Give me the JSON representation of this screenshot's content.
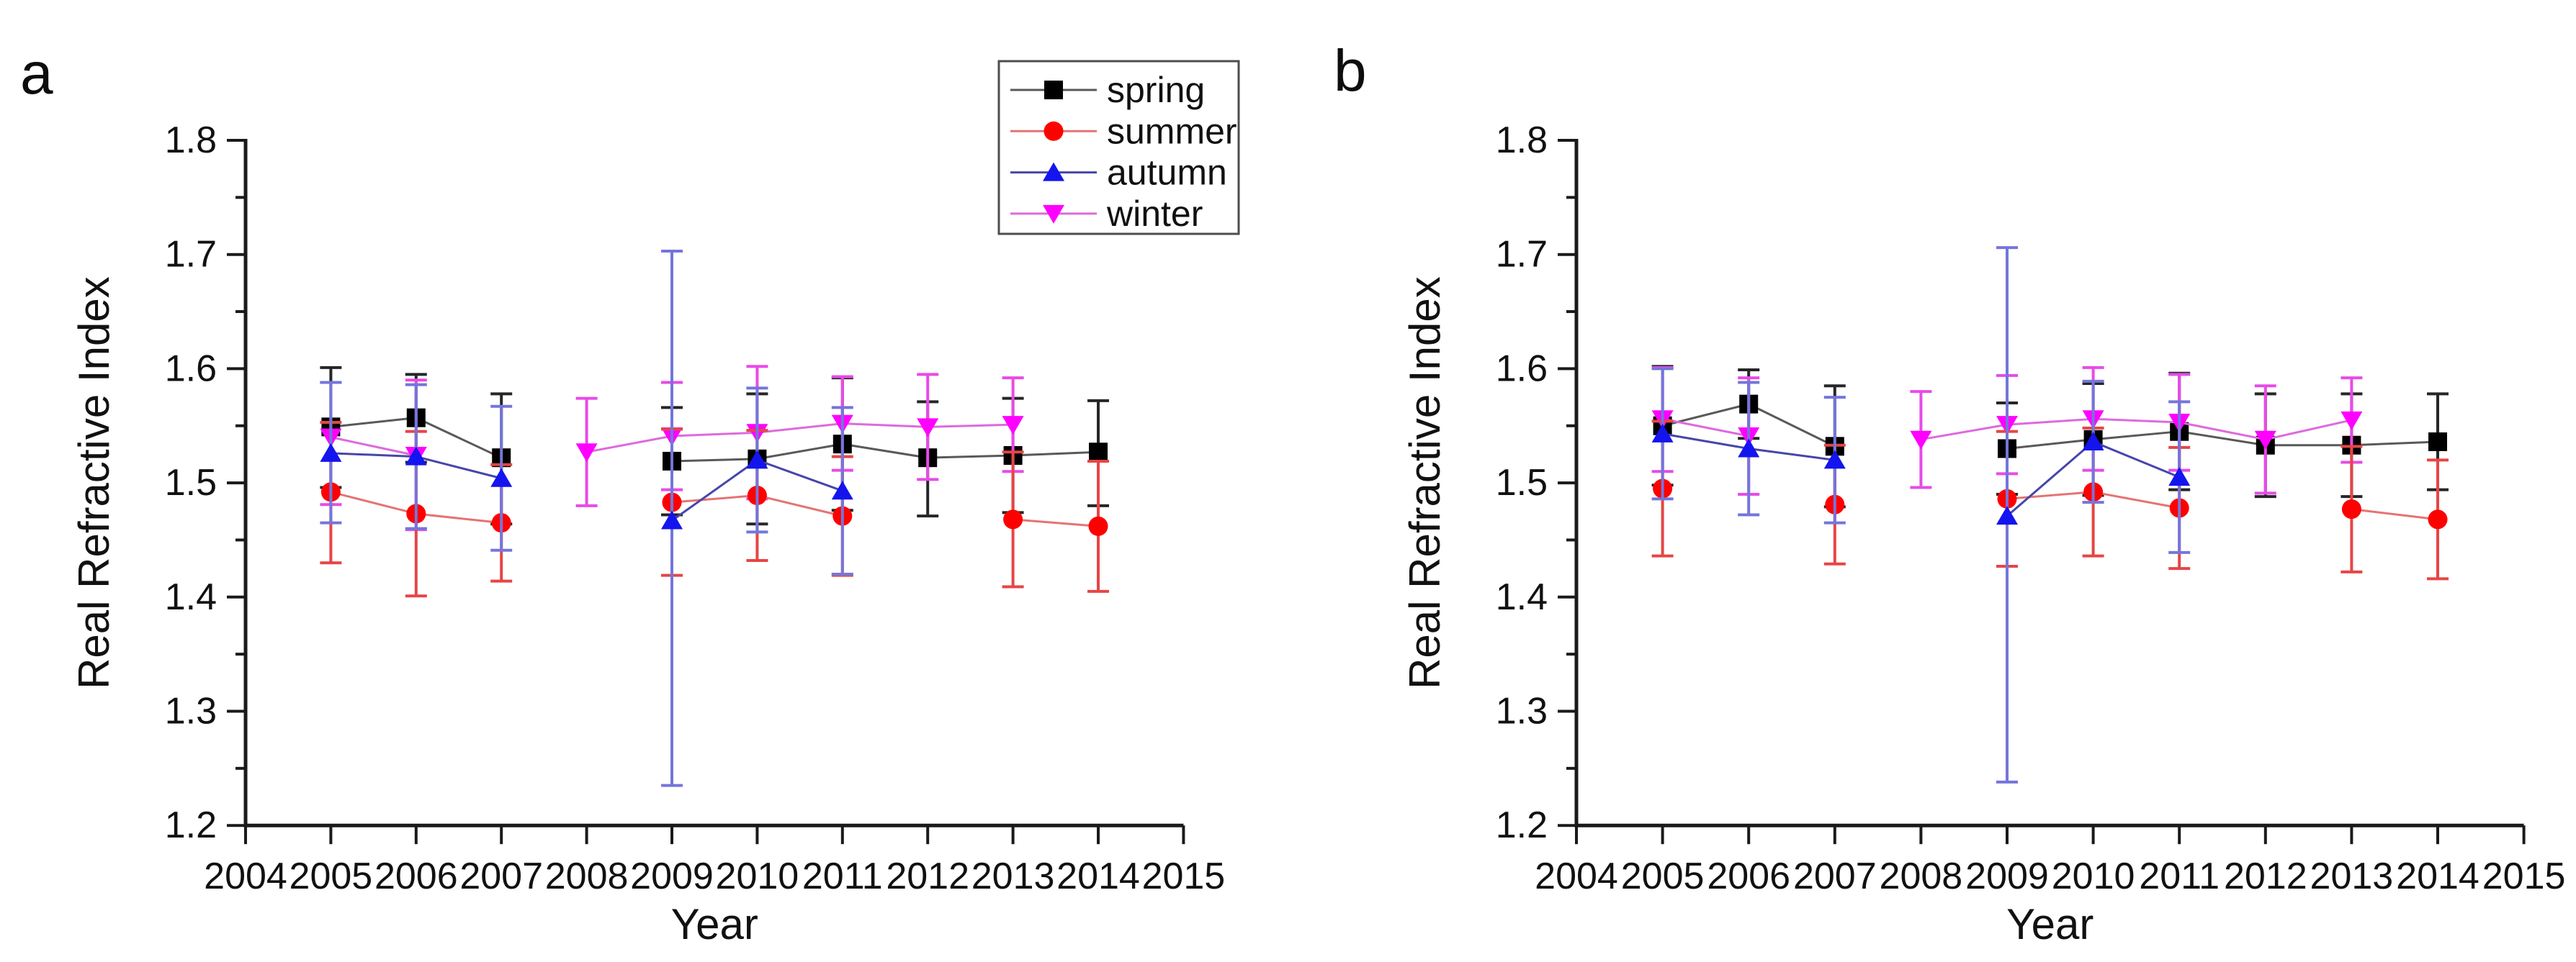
{
  "chart_data": [
    {
      "panel_label": "a",
      "type": "line",
      "title": "",
      "xlabel": "Year",
      "ylabel": "Real Refractive Index",
      "xlim": [
        2004,
        2015
      ],
      "ylim": [
        1.2,
        1.8
      ],
      "xticks": [
        2004,
        2005,
        2006,
        2007,
        2008,
        2009,
        2010,
        2011,
        2012,
        2013,
        2014,
        2015
      ],
      "yticks": [
        1.2,
        1.3,
        1.4,
        1.5,
        1.6,
        1.7,
        1.8
      ],
      "y_minor_step": 0.05,
      "grid": false,
      "error_bars": true,
      "points_format": [
        "year",
        "value",
        "err_low_value",
        "err_high_value"
      ],
      "legend": {
        "visible": true,
        "position": "top-right",
        "entries": [
          "spring",
          "summer",
          "autumn",
          "winter"
        ]
      },
      "series": [
        {
          "name": "spring",
          "marker": "square",
          "marker_color": "#000000",
          "line_color": "#595959",
          "error_color": "#262626",
          "points": [
            [
              2005,
              1.549,
              1.496,
              1.601
            ],
            [
              2006,
              1.557,
              1.518,
              1.595
            ],
            [
              2007,
              1.522,
              1.464,
              1.578
            ],
            [
              2009,
              1.519,
              1.472,
              1.566
            ],
            [
              2010,
              1.521,
              1.464,
              1.578
            ],
            [
              2011,
              1.534,
              1.476,
              1.592
            ],
            [
              2012,
              1.522,
              1.471,
              1.571
            ],
            [
              2013,
              1.524,
              1.474,
              1.574
            ],
            [
              2014,
              1.527,
              1.48,
              1.572
            ]
          ]
        },
        {
          "name": "summer",
          "marker": "circle",
          "marker_color": "#ff0000",
          "line_color": "#e57373",
          "error_color": "#e64545",
          "points": [
            [
              2005,
              1.492,
              1.43,
              1.553
            ],
            [
              2006,
              1.473,
              1.401,
              1.545
            ],
            [
              2007,
              1.465,
              1.414,
              1.516
            ],
            [
              2009,
              1.483,
              1.419,
              1.547
            ],
            [
              2010,
              1.489,
              1.432,
              1.546
            ],
            [
              2011,
              1.471,
              1.419,
              1.523
            ],
            [
              2013,
              1.468,
              1.409,
              1.527
            ],
            [
              2014,
              1.462,
              1.405,
              1.519
            ]
          ]
        },
        {
          "name": "autumn",
          "marker": "triangle-up",
          "marker_color": "#1414ee",
          "line_color": "#4646aa",
          "error_color": "#7575db",
          "points": [
            [
              2005,
              1.526,
              1.465,
              1.588
            ],
            [
              2006,
              1.523,
              1.46,
              1.586
            ],
            [
              2007,
              1.504,
              1.441,
              1.567
            ],
            [
              2009,
              1.467,
              1.235,
              1.703
            ],
            [
              2010,
              1.52,
              1.457,
              1.583
            ],
            [
              2011,
              1.493,
              1.42,
              1.566
            ]
          ]
        },
        {
          "name": "winter",
          "marker": "triangle-down",
          "marker_color": "#ff00ff",
          "line_color": "#dd6add",
          "error_color": "#e84ae8",
          "points": [
            [
              2005,
              1.54,
              1.481,
              1.588
            ],
            [
              2006,
              1.524,
              1.459,
              1.59
            ],
            [
              2008,
              1.527,
              1.48,
              1.574
            ],
            [
              2009,
              1.541,
              1.494,
              1.588
            ],
            [
              2010,
              1.544,
              1.486,
              1.602
            ],
            [
              2011,
              1.552,
              1.511,
              1.593
            ],
            [
              2012,
              1.549,
              1.503,
              1.595
            ],
            [
              2013,
              1.551,
              1.51,
              1.592
            ]
          ]
        }
      ]
    },
    {
      "panel_label": "b",
      "type": "line",
      "title": "",
      "xlabel": "Year",
      "ylabel": "Real Refractive Index",
      "xlim": [
        2004,
        2015
      ],
      "ylim": [
        1.2,
        1.8
      ],
      "xticks": [
        2004,
        2005,
        2006,
        2007,
        2008,
        2009,
        2010,
        2011,
        2012,
        2013,
        2014,
        2015
      ],
      "yticks": [
        1.2,
        1.3,
        1.4,
        1.5,
        1.6,
        1.7,
        1.8
      ],
      "y_minor_step": 0.05,
      "grid": false,
      "error_bars": true,
      "points_format": [
        "year",
        "value",
        "err_low_value",
        "err_high_value"
      ],
      "legend": {
        "visible": false,
        "position": "none",
        "entries": []
      },
      "series": [
        {
          "name": "spring",
          "marker": "square",
          "marker_color": "#000000",
          "line_color": "#595959",
          "error_color": "#262626",
          "points": [
            [
              2005,
              1.55,
              1.498,
              1.602
            ],
            [
              2006,
              1.569,
              1.539,
              1.599
            ],
            [
              2007,
              1.532,
              1.479,
              1.585
            ],
            [
              2009,
              1.53,
              1.49,
              1.57
            ],
            [
              2010,
              1.538,
              1.489,
              1.587
            ],
            [
              2011,
              1.545,
              1.494,
              1.596
            ],
            [
              2012,
              1.533,
              1.488,
              1.578
            ],
            [
              2013,
              1.533,
              1.488,
              1.578
            ],
            [
              2014,
              1.536,
              1.494,
              1.578
            ]
          ]
        },
        {
          "name": "summer",
          "marker": "circle",
          "marker_color": "#ff0000",
          "line_color": "#e57373",
          "error_color": "#e64545",
          "points": [
            [
              2005,
              1.495,
              1.436,
              1.554
            ],
            [
              2007,
              1.481,
              1.429,
              1.533
            ],
            [
              2009,
              1.486,
              1.427,
              1.545
            ],
            [
              2010,
              1.492,
              1.436,
              1.548
            ],
            [
              2011,
              1.478,
              1.425,
              1.531
            ],
            [
              2013,
              1.477,
              1.422,
              1.532
            ],
            [
              2014,
              1.468,
              1.416,
              1.52
            ]
          ]
        },
        {
          "name": "autumn",
          "marker": "triangle-up",
          "marker_color": "#1414ee",
          "line_color": "#4646aa",
          "error_color": "#7575db",
          "points": [
            [
              2005,
              1.543,
              1.486,
              1.6
            ],
            [
              2006,
              1.53,
              1.472,
              1.588
            ],
            [
              2007,
              1.52,
              1.465,
              1.575
            ],
            [
              2009,
              1.471,
              1.238,
              1.706
            ],
            [
              2010,
              1.536,
              1.483,
              1.589
            ],
            [
              2011,
              1.505,
              1.439,
              1.571
            ]
          ]
        },
        {
          "name": "winter",
          "marker": "triangle-down",
          "marker_color": "#ff00ff",
          "line_color": "#dd6add",
          "error_color": "#e84ae8",
          "points": [
            [
              2005,
              1.556,
              1.51,
              1.601
            ],
            [
              2006,
              1.541,
              1.49,
              1.592
            ],
            [
              2008,
              1.538,
              1.496,
              1.58
            ],
            [
              2009,
              1.551,
              1.508,
              1.594
            ],
            [
              2010,
              1.556,
              1.511,
              1.601
            ],
            [
              2011,
              1.553,
              1.511,
              1.595
            ],
            [
              2012,
              1.538,
              1.491,
              1.585
            ],
            [
              2013,
              1.555,
              1.518,
              1.592
            ]
          ]
        }
      ]
    }
  ]
}
